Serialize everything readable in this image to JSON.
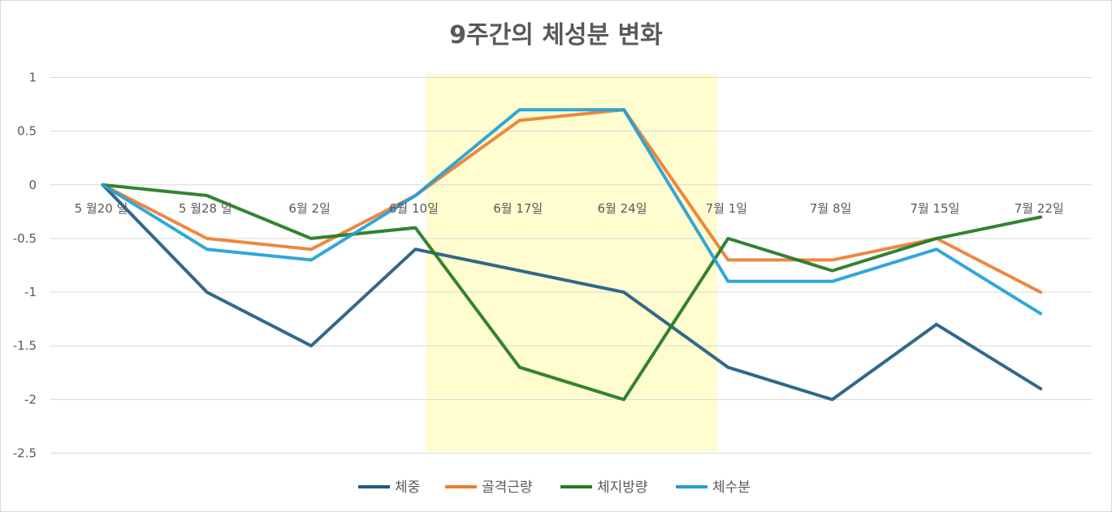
{
  "chart_data": {
    "type": "line",
    "title": "9주간의 체성분 변화",
    "categories": [
      "5월20일",
      "5월28일",
      "6월2일",
      "6월10일",
      "6월17일",
      "6월24일",
      "7월1일",
      "7월8일",
      "7월15일",
      "7월22일"
    ],
    "category_labels": [
      "5 월20 일",
      "5 월28 일",
      "6월 2일",
      "6월 10일",
      "6월 17일",
      "6월 24일",
      "7월 1일",
      "7월 8일",
      "7월 15일",
      "7월 22일"
    ],
    "ylim": [
      -2.5,
      1
    ],
    "y_ticks": [
      1,
      0.5,
      0,
      -0.5,
      -1,
      -1.5,
      -2,
      -2.5
    ],
    "y_tick_labels": [
      "1",
      "0.5",
      "0",
      "-0.5",
      "-1",
      "-1.5",
      "-2",
      "-2.5"
    ],
    "grid": "horizontal",
    "legend": "bottom",
    "highlight": {
      "from_category": "6월10일",
      "to_category": "7월1일",
      "color": "#fffccf"
    },
    "series": [
      {
        "name": "체중",
        "color": "#1f5b82",
        "values": [
          0,
          -1,
          -1.5,
          -0.6,
          -0.8,
          -1,
          -1.7,
          -2,
          -1.3,
          -1.9
        ]
      },
      {
        "name": "골격근량",
        "color": "#ed7d31",
        "values": [
          0,
          -0.5,
          -0.6,
          -0.1,
          0.6,
          0.7,
          -0.7,
          -0.7,
          -0.5,
          -1
        ]
      },
      {
        "name": "체지방량",
        "color": "#1f7a1f",
        "values": [
          0,
          -0.1,
          -0.5,
          -0.4,
          -1.7,
          -2,
          -0.5,
          -0.8,
          -0.5,
          -0.3
        ]
      },
      {
        "name": "체수분",
        "color": "#1ea0d8",
        "values": [
          0,
          -0.6,
          -0.7,
          -0.1,
          0.7,
          0.7,
          -0.9,
          -0.9,
          -0.6,
          -1.2
        ]
      }
    ]
  }
}
